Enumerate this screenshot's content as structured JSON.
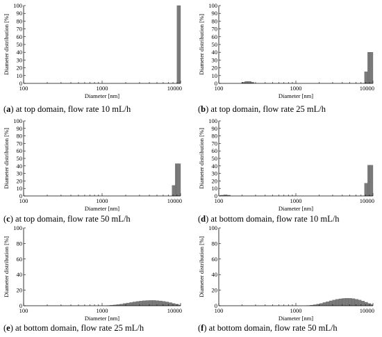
{
  "panels": [
    {
      "caption_letter": "a",
      "caption_text": " at top domain, flow rate 10 mL/h",
      "chart_data": {
        "type": "bar",
        "xscale": "log",
        "xlim": [
          100,
          10000
        ],
        "ylim": [
          0,
          100
        ],
        "xticks": [
          100,
          1000,
          10000
        ],
        "yticks": [
          0,
          10,
          20,
          30,
          40,
          50,
          60,
          70,
          80,
          90,
          100
        ],
        "xlabel": "Diameter [nm]",
        "ylabel": "Diameter distribution [%]",
        "bars": [
          {
            "x": 9700,
            "value": 100
          }
        ]
      }
    },
    {
      "caption_letter": "b",
      "caption_text": " at top domain, flow rate 25 mL/h",
      "chart_data": {
        "type": "bar",
        "xscale": "log",
        "xlim": [
          100,
          10000
        ],
        "ylim": [
          0,
          100
        ],
        "xticks": [
          100,
          1000,
          10000
        ],
        "yticks": [
          0,
          10,
          20,
          30,
          40,
          50,
          60,
          70,
          80,
          90,
          100
        ],
        "xlabel": "Diameter [nm]",
        "ylabel": "Diameter distribution [%]",
        "bars": [
          {
            "x": 210,
            "value": 1.5
          },
          {
            "x": 230,
            "value": 2.5
          },
          {
            "x": 250,
            "value": 2.5
          },
          {
            "x": 270,
            "value": 1.5
          },
          {
            "x": 8200,
            "value": 15
          },
          {
            "x": 9000,
            "value": 40
          },
          {
            "x": 9800,
            "value": 40
          }
        ]
      }
    },
    {
      "caption_letter": "c",
      "caption_text": " at top domain, flow rate 50 mL/h",
      "chart_data": {
        "type": "bar",
        "xscale": "log",
        "xlim": [
          100,
          10000
        ],
        "ylim": [
          0,
          100
        ],
        "xticks": [
          100,
          1000,
          10000
        ],
        "yticks": [
          0,
          10,
          20,
          30,
          40,
          50,
          60,
          70,
          80,
          90,
          100
        ],
        "xlabel": "Diameter [nm]",
        "ylabel": "Diameter distribution [%]",
        "bars": [
          {
            "x": 8200,
            "value": 14
          },
          {
            "x": 9000,
            "value": 43
          },
          {
            "x": 9800,
            "value": 43
          }
        ]
      }
    },
    {
      "caption_letter": "d",
      "caption_text": " at bottom domain, flow rate 10 mL/h",
      "chart_data": {
        "type": "bar",
        "xscale": "log",
        "xlim": [
          100,
          10000
        ],
        "ylim": [
          0,
          100
        ],
        "xticks": [
          100,
          1000,
          10000
        ],
        "yticks": [
          0,
          10,
          20,
          30,
          40,
          50,
          60,
          70,
          80,
          90,
          100
        ],
        "xlabel": "Diameter [nm]",
        "ylabel": "Diameter distribution [%]",
        "bars": [
          {
            "x": 110,
            "value": 1
          },
          {
            "x": 122,
            "value": 1.5
          },
          {
            "x": 134,
            "value": 1
          },
          {
            "x": 8200,
            "value": 17
          },
          {
            "x": 9000,
            "value": 41
          },
          {
            "x": 9800,
            "value": 41
          }
        ]
      }
    },
    {
      "caption_letter": "e",
      "caption_text": " at bottom domain, flow rate 25 mL/h",
      "chart_data": {
        "type": "bar",
        "xscale": "log",
        "xlim": [
          100,
          10000
        ],
        "ylim": [
          0,
          100
        ],
        "xticks": [
          100,
          1000,
          10000
        ],
        "yticks": [
          0,
          20,
          40,
          60,
          80,
          100
        ],
        "xlabel": "Diameter  [nm]",
        "ylabel": "Diameter distribution [%]",
        "bars": [
          {
            "x": 1200,
            "value": 0.3
          },
          {
            "x": 1320,
            "value": 0.6
          },
          {
            "x": 1450,
            "value": 1.0
          },
          {
            "x": 1600,
            "value": 1.5
          },
          {
            "x": 1760,
            "value": 2.1
          },
          {
            "x": 1940,
            "value": 2.8
          },
          {
            "x": 2130,
            "value": 3.5
          },
          {
            "x": 2350,
            "value": 4.2
          },
          {
            "x": 2580,
            "value": 4.9
          },
          {
            "x": 2840,
            "value": 5.5
          },
          {
            "x": 3130,
            "value": 6.0
          },
          {
            "x": 3440,
            "value": 6.4
          },
          {
            "x": 3790,
            "value": 6.7
          },
          {
            "x": 4170,
            "value": 6.8
          },
          {
            "x": 4590,
            "value": 6.8
          },
          {
            "x": 5050,
            "value": 6.6
          },
          {
            "x": 5560,
            "value": 6.2
          },
          {
            "x": 6120,
            "value": 5.6
          },
          {
            "x": 6730,
            "value": 4.9
          },
          {
            "x": 7410,
            "value": 4.0
          },
          {
            "x": 8150,
            "value": 3.0
          },
          {
            "x": 8970,
            "value": 2.0
          },
          {
            "x": 9700,
            "value": 1.0
          }
        ]
      }
    },
    {
      "caption_letter": "f",
      "caption_text": " at bottom domain, flow rate 50 mL/h",
      "chart_data": {
        "type": "bar",
        "xscale": "log",
        "xlim": [
          100,
          10000
        ],
        "ylim": [
          0,
          100
        ],
        "xticks": [
          100,
          1000,
          10000
        ],
        "yticks": [
          0,
          20,
          40,
          60,
          80,
          100
        ],
        "xlabel": "Diameter  [nm]",
        "ylabel": "Diameter distribution [%]",
        "bars": [
          {
            "x": 1450,
            "value": 0.3
          },
          {
            "x": 1600,
            "value": 0.7
          },
          {
            "x": 1760,
            "value": 1.3
          },
          {
            "x": 1940,
            "value": 2.1
          },
          {
            "x": 2130,
            "value": 3.0
          },
          {
            "x": 2350,
            "value": 4.1
          },
          {
            "x": 2580,
            "value": 5.2
          },
          {
            "x": 2840,
            "value": 6.3
          },
          {
            "x": 3130,
            "value": 7.3
          },
          {
            "x": 3440,
            "value": 8.2
          },
          {
            "x": 3790,
            "value": 8.9
          },
          {
            "x": 4170,
            "value": 9.4
          },
          {
            "x": 4590,
            "value": 9.6
          },
          {
            "x": 5050,
            "value": 9.5
          },
          {
            "x": 5560,
            "value": 9.1
          },
          {
            "x": 6120,
            "value": 8.3
          },
          {
            "x": 6730,
            "value": 7.3
          },
          {
            "x": 7410,
            "value": 6.0
          },
          {
            "x": 8150,
            "value": 4.5
          },
          {
            "x": 8970,
            "value": 3.0
          },
          {
            "x": 9700,
            "value": 1.5
          }
        ]
      }
    }
  ]
}
